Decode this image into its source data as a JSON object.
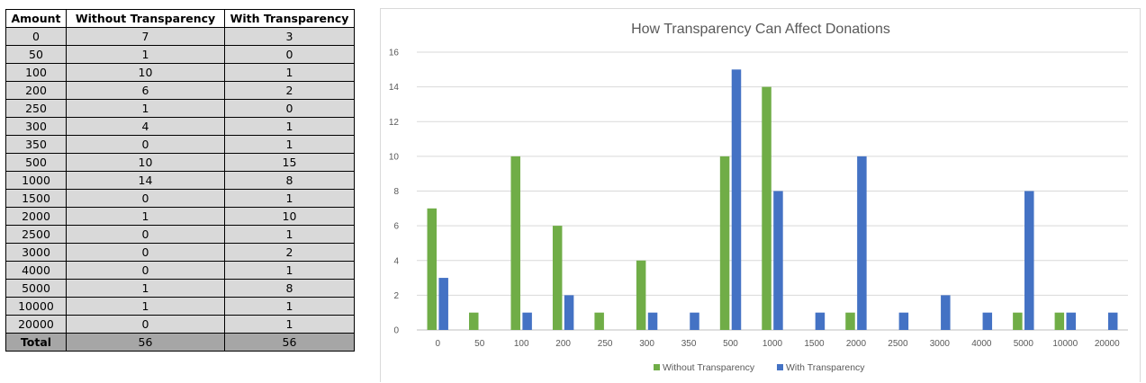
{
  "table": {
    "headers": [
      "Amount",
      "Without Transparency",
      "With Transparency"
    ],
    "rows": [
      [
        "0",
        "7",
        "3"
      ],
      [
        "50",
        "1",
        "0"
      ],
      [
        "100",
        "10",
        "1"
      ],
      [
        "200",
        "6",
        "2"
      ],
      [
        "250",
        "1",
        "0"
      ],
      [
        "300",
        "4",
        "1"
      ],
      [
        "350",
        "0",
        "1"
      ],
      [
        "500",
        "10",
        "15"
      ],
      [
        "1000",
        "14",
        "8"
      ],
      [
        "1500",
        "0",
        "1"
      ],
      [
        "2000",
        "1",
        "10"
      ],
      [
        "2500",
        "0",
        "1"
      ],
      [
        "3000",
        "0",
        "2"
      ],
      [
        "4000",
        "0",
        "1"
      ],
      [
        "5000",
        "1",
        "8"
      ],
      [
        "10000",
        "1",
        "1"
      ],
      [
        "20000",
        "0",
        "1"
      ]
    ],
    "total": [
      "Total",
      "56",
      "56"
    ]
  },
  "chart_data": {
    "type": "bar",
    "title": "How Transparency Can Affect Donations",
    "categories": [
      "0",
      "50",
      "100",
      "200",
      "250",
      "300",
      "350",
      "500",
      "1000",
      "1500",
      "2000",
      "2500",
      "3000",
      "4000",
      "5000",
      "10000",
      "20000"
    ],
    "series": [
      {
        "name": "Without Transparency",
        "color": "#70ad47",
        "values": [
          7,
          1,
          10,
          6,
          1,
          4,
          0,
          10,
          14,
          0,
          1,
          0,
          0,
          0,
          1,
          1,
          0
        ]
      },
      {
        "name": "With Transparency",
        "color": "#4472c4",
        "values": [
          3,
          0,
          1,
          2,
          0,
          1,
          1,
          15,
          8,
          1,
          10,
          1,
          2,
          1,
          8,
          1,
          1
        ]
      }
    ],
    "ylim": [
      0,
      16
    ],
    "yticks": [
      0,
      2,
      4,
      6,
      8,
      10,
      12,
      14,
      16
    ],
    "xlabel": "",
    "ylabel": "",
    "grid": true,
    "legend": "bottom"
  }
}
